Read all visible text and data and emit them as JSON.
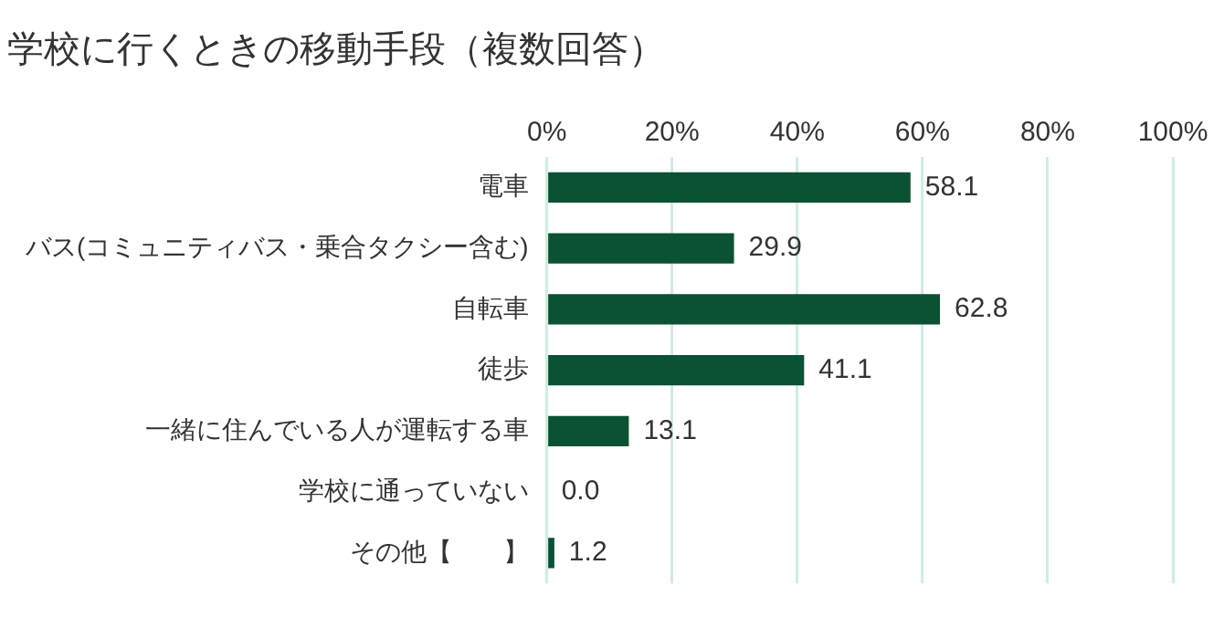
{
  "chart_data": {
    "type": "bar",
    "orientation": "horizontal",
    "title": "学校に行くときの移動手段（複数回答）",
    "categories": [
      "電車",
      "バス(コミュニティバス・乗合タクシー含む)",
      "自転車",
      "徒歩",
      "一緒に住んでいる人が運転する車",
      "学校に通っていない",
      "その他【　　】"
    ],
    "values": [
      58.1,
      29.9,
      62.8,
      41.1,
      13.1,
      0.0,
      1.2
    ],
    "value_labels": [
      "58.1",
      "29.9",
      "62.8",
      "41.1",
      "13.1",
      "0.0",
      "1.2"
    ],
    "color": "#0b5134",
    "xlim": [
      0,
      100
    ],
    "xticks": [
      {
        "value": 0,
        "label": "0%"
      },
      {
        "value": 20,
        "label": "20%"
      },
      {
        "value": 40,
        "label": "40%"
      },
      {
        "value": 60,
        "label": "60%"
      },
      {
        "value": 80,
        "label": "80%"
      },
      {
        "value": 100,
        "label": "100%"
      }
    ],
    "grid": "x",
    "legend": false
  }
}
